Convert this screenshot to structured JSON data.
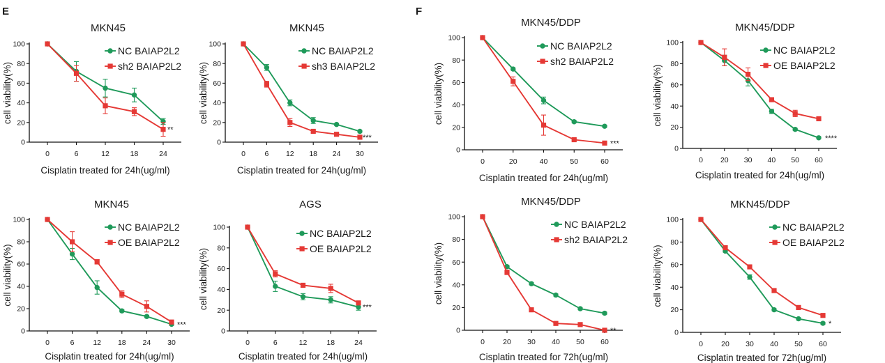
{
  "panel_labels": [
    {
      "label": "E"
    },
    {
      "label": "F"
    }
  ],
  "chart_data": [
    {
      "type": "line",
      "title": "MKN45",
      "xlabel": "Cisplatin treated for 24h(ug/ml)",
      "ylabel": "cell viability(%)",
      "x": [
        0,
        6,
        12,
        18,
        24
      ],
      "ylim": [
        0,
        100
      ],
      "yticks": [
        0,
        20,
        40,
        60,
        80,
        100
      ],
      "significance": "**",
      "legend": "top-right",
      "series": [
        {
          "name": "NC BAIAP2L2",
          "color": "#1f9a5a",
          "marker": "circle",
          "values": [
            100,
            72,
            55,
            48,
            21
          ],
          "errors": [
            0,
            10,
            9,
            7,
            3
          ]
        },
        {
          "name": "sh2 BAIAP2L2",
          "color": "#e53935",
          "marker": "square",
          "values": [
            100,
            70,
            37,
            31,
            13
          ],
          "errors": [
            0,
            8,
            8,
            4,
            7
          ]
        }
      ]
    },
    {
      "type": "line",
      "title": "MKN45",
      "xlabel": "Cisplatin treated for 24h(ug/ml)",
      "ylabel": "cell viability(%)",
      "x": [
        0,
        6,
        12,
        18,
        24,
        30
      ],
      "ylim": [
        0,
        100
      ],
      "yticks": [
        0,
        20,
        40,
        60,
        80,
        100
      ],
      "significance": "***",
      "legend": "top-right",
      "series": [
        {
          "name": "NC BAIAP2L2",
          "color": "#1f9a5a",
          "marker": "circle",
          "values": [
            100,
            76,
            40,
            22,
            18,
            11
          ],
          "errors": [
            0,
            3,
            3,
            3,
            1,
            1
          ]
        },
        {
          "name": "sh3 BAIAP2L2",
          "color": "#e53935",
          "marker": "square",
          "values": [
            100,
            59,
            20,
            11,
            8,
            5
          ],
          "errors": [
            0,
            3,
            4,
            1,
            1,
            1
          ]
        }
      ]
    },
    {
      "type": "line",
      "title": "MKN45",
      "xlabel": "Cisplatin treated for 24h(ug/ml)",
      "ylabel": "cell viability(%)",
      "x": [
        0,
        6,
        12,
        18,
        24,
        30
      ],
      "ylim": [
        0,
        100
      ],
      "yticks": [
        0,
        20,
        40,
        60,
        80,
        100
      ],
      "significance": "***",
      "legend": "top-right",
      "series": [
        {
          "name": "NC BAIAP2L2",
          "color": "#1f9a5a",
          "marker": "circle",
          "values": [
            100,
            69,
            39,
            18,
            13,
            6
          ],
          "errors": [
            0,
            5,
            6,
            1,
            1,
            1
          ]
        },
        {
          "name": "OE BAIAP2L2",
          "color": "#e53935",
          "marker": "square",
          "values": [
            100,
            80,
            62,
            33,
            22,
            8
          ],
          "errors": [
            0,
            9,
            2,
            3,
            5,
            1
          ]
        }
      ]
    },
    {
      "type": "line",
      "title": "AGS",
      "xlabel": "Cisplatin treated for 24h(ug/ml)",
      "ylabel": "cell viability(%)",
      "x": [
        0,
        6,
        12,
        18,
        24
      ],
      "ylim": [
        0,
        100
      ],
      "yticks": [
        0,
        20,
        40,
        60,
        80,
        100
      ],
      "significance": "***",
      "legend": "top-right",
      "series": [
        {
          "name": "NC BAIAP2L2",
          "color": "#1f9a5a",
          "marker": "circle",
          "values": [
            100,
            43,
            33,
            30,
            23
          ],
          "errors": [
            0,
            5,
            3,
            3,
            3
          ]
        },
        {
          "name": "OE BAIAP2L2",
          "color": "#e53935",
          "marker": "square",
          "values": [
            100,
            55,
            44,
            41,
            27
          ],
          "errors": [
            0,
            3,
            1,
            4,
            1
          ]
        }
      ]
    },
    {
      "type": "line",
      "title": "MKN45/DDP",
      "xlabel": "Cisplatin treated for 24h(ug/ml)",
      "ylabel": "cell viability(%)",
      "x": [
        0,
        20,
        40,
        50,
        60
      ],
      "ylim": [
        0,
        100
      ],
      "yticks": [
        0,
        20,
        40,
        60,
        80,
        100
      ],
      "significance": "***",
      "legend": "top-right",
      "series": [
        {
          "name": "NC BAIAP2L2",
          "color": "#1f9a5a",
          "marker": "circle",
          "values": [
            100,
            72,
            44,
            25,
            21
          ],
          "errors": [
            0,
            1,
            3,
            1,
            1
          ]
        },
        {
          "name": "sh2 BAIAP2L2",
          "color": "#e53935",
          "marker": "square",
          "values": [
            100,
            61,
            22,
            9,
            6
          ],
          "errors": [
            0,
            4,
            9,
            1,
            1
          ]
        }
      ]
    },
    {
      "type": "line",
      "title": "MKN45/DDP",
      "xlabel": "Cisplatin treated for 24h(ug/ml)",
      "ylabel": "cell viability(%)",
      "x": [
        0,
        20,
        30,
        40,
        50,
        60
      ],
      "ylim": [
        0,
        100
      ],
      "yticks": [
        0,
        20,
        40,
        60,
        80,
        100
      ],
      "significance": "****",
      "legend": "top-right",
      "series": [
        {
          "name": "NC BAIAP2L2",
          "color": "#1f9a5a",
          "marker": "circle",
          "values": [
            100,
            83,
            64,
            35,
            18,
            10
          ],
          "errors": [
            0,
            5,
            5,
            2,
            1,
            1
          ]
        },
        {
          "name": "OE BAIAP2L2",
          "color": "#e53935",
          "marker": "square",
          "values": [
            100,
            86,
            70,
            46,
            33,
            28
          ],
          "errors": [
            0,
            8,
            6,
            1,
            3,
            1
          ]
        }
      ]
    },
    {
      "type": "line",
      "title": "MKN45/DDP",
      "xlabel": "Cisplatin treated for 72h(ug/ml)",
      "ylabel": "cell viability(%)",
      "x": [
        0,
        20,
        30,
        40,
        50,
        60
      ],
      "ylim": [
        0,
        100
      ],
      "yticks": [
        0,
        20,
        40,
        60,
        80,
        100
      ],
      "significance": "**",
      "legend": "top-right",
      "series": [
        {
          "name": "NC BAIAP2L2",
          "color": "#1f9a5a",
          "marker": "circle",
          "values": [
            100,
            56,
            41,
            31,
            19,
            15
          ],
          "errors": [
            0,
            1,
            1,
            1,
            1,
            1
          ]
        },
        {
          "name": "sh2 BAIAP2L2",
          "color": "#e53935",
          "marker": "square",
          "values": [
            100,
            51,
            18,
            6,
            5,
            0
          ],
          "errors": [
            0,
            2,
            1,
            1,
            1,
            1
          ]
        }
      ]
    },
    {
      "type": "line",
      "title": "MKN45/DDP",
      "xlabel": "Cisplatin treated for 72h(ug/ml)",
      "ylabel": "cell viability(%)",
      "x": [
        0,
        20,
        30,
        40,
        50,
        60
      ],
      "ylim": [
        0,
        100
      ],
      "yticks": [
        0,
        20,
        40,
        60,
        80,
        100
      ],
      "significance": "*",
      "legend": "top-right",
      "series": [
        {
          "name": "NC BAIAP2L2",
          "color": "#1f9a5a",
          "marker": "circle",
          "values": [
            100,
            72,
            49,
            20,
            12,
            8
          ],
          "errors": [
            0,
            1,
            2,
            1,
            1,
            1
          ]
        },
        {
          "name": "OE BAIAP2L2",
          "color": "#e53935",
          "marker": "square",
          "values": [
            100,
            75,
            58,
            37,
            22,
            15
          ],
          "errors": [
            0,
            1,
            1,
            1,
            1,
            1
          ]
        }
      ]
    }
  ]
}
